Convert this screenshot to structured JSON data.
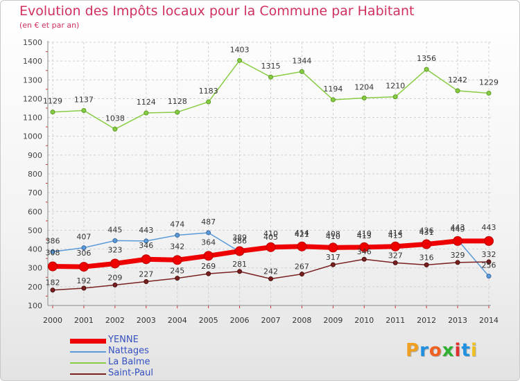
{
  "header": {
    "title": "Evolution des Impôts locaux pour la Commune par Habitant",
    "subtitle": "(en € et par an)"
  },
  "logo": {
    "text": "Proxiti",
    "colors": [
      "#f0a020",
      "#2090e0",
      "#f06020",
      "#30b030",
      "#e03030",
      "#2090e0",
      "#f0c020"
    ]
  },
  "chart_data": {
    "type": "line",
    "title": "Evolution des Impôts locaux pour la Commune par Habitant",
    "subtitle": "(en € et par an)",
    "x": [
      "2000",
      "2001",
      "2002",
      "2003",
      "2004",
      "2005",
      "2006",
      "2007",
      "2008",
      "2009",
      "2010",
      "2011",
      "2012",
      "2013",
      "2014"
    ],
    "ylim": [
      100,
      1500
    ],
    "yticks": [
      100,
      200,
      300,
      400,
      500,
      600,
      700,
      800,
      900,
      1000,
      1100,
      1200,
      1300,
      1400,
      1500
    ],
    "grid": true,
    "legend_position": "bottom-left",
    "series": [
      {
        "name": "YENNE",
        "color": "#ee0000",
        "width": 7,
        "values": [
          308,
          306,
          323,
          346,
          342,
          364,
          389,
          410,
          414,
          408,
          410,
          414,
          426,
          443,
          443
        ]
      },
      {
        "name": "Nattages",
        "color": "#5a9ad8",
        "width": 1.5,
        "values": [
          386,
          407,
          445,
          443,
          474,
          487,
          386,
          405,
          421,
          410,
          413,
          415,
          431,
          449,
          256
        ]
      },
      {
        "name": "La Balme",
        "color": "#88cc44",
        "width": 1.5,
        "values": [
          1129,
          1137,
          1038,
          1124,
          1128,
          1183,
          1403,
          1315,
          1344,
          1194,
          1204,
          1210,
          1356,
          1242,
          1229
        ]
      },
      {
        "name": "Saint-Paul",
        "color": "#7a2020",
        "width": 1.5,
        "values": [
          182,
          192,
          209,
          227,
          245,
          269,
          281,
          242,
          267,
          317,
          346,
          327,
          316,
          329,
          332
        ]
      }
    ]
  }
}
